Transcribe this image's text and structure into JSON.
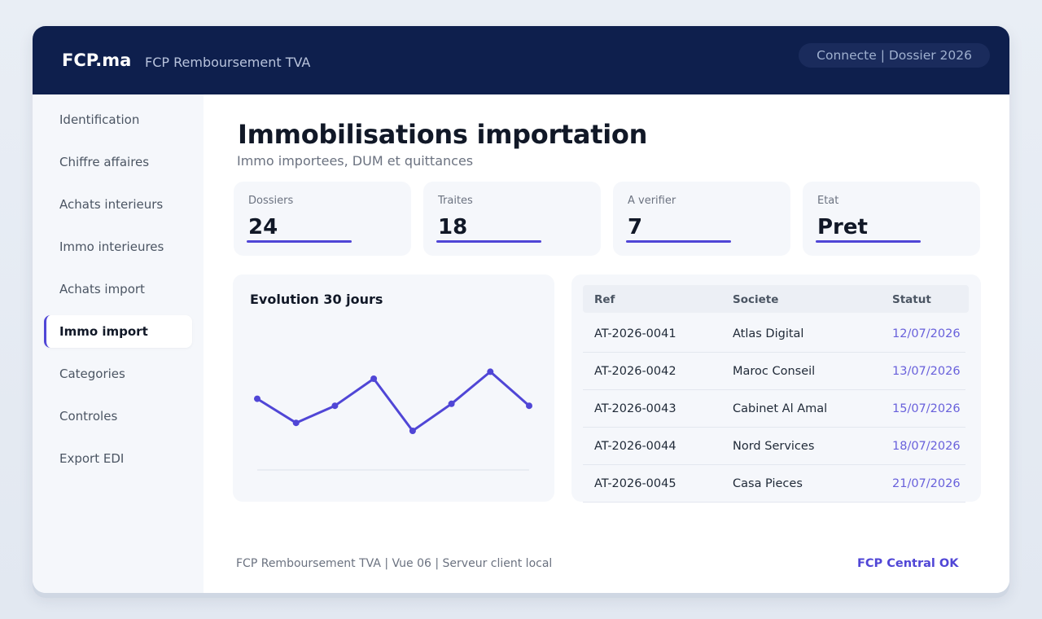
{
  "header": {
    "brand": "FCP.ma",
    "app_name": "FCP Remboursement TVA",
    "status": "Connecte | Dossier 2026"
  },
  "sidebar": {
    "items": [
      {
        "label": "Identification",
        "active": false
      },
      {
        "label": "Chiffre affaires",
        "active": false
      },
      {
        "label": "Achats interieurs",
        "active": false
      },
      {
        "label": "Immo interieures",
        "active": false
      },
      {
        "label": "Achats import",
        "active": false
      },
      {
        "label": "Immo import",
        "active": true
      },
      {
        "label": "Categories",
        "active": false
      },
      {
        "label": "Controles",
        "active": false
      },
      {
        "label": "Export EDI",
        "active": false
      }
    ]
  },
  "page": {
    "title": "Immobilisations importation",
    "subtitle": "Immo importees, DUM et quittances"
  },
  "kpis": [
    {
      "label": "Dossiers",
      "value": "24"
    },
    {
      "label": "Traites",
      "value": "18"
    },
    {
      "label": "A verifier",
      "value": "7"
    },
    {
      "label": "Etat",
      "value": "Pret"
    }
  ],
  "chart": {
    "title": "Evolution 30 jours"
  },
  "chart_data": {
    "type": "line",
    "title": "Evolution 30 jours",
    "x": [
      1,
      2,
      3,
      4,
      5,
      6,
      7,
      8
    ],
    "series": [
      {
        "values": [
          0.71,
          0.47,
          0.64,
          0.91,
          0.39,
          0.66,
          0.98,
          0.64
        ]
      }
    ],
    "ylim": [
      0,
      1.3
    ],
    "grid": false,
    "color": "#5046d6"
  },
  "table": {
    "headers": {
      "ref": "Ref",
      "societe": "Societe",
      "statut": "Statut"
    },
    "rows": [
      {
        "ref": "AT-2026-0041",
        "societe": "Atlas Digital",
        "statut": "12/07/2026"
      },
      {
        "ref": "AT-2026-0042",
        "societe": "Maroc Conseil",
        "statut": "13/07/2026"
      },
      {
        "ref": "AT-2026-0043",
        "societe": "Cabinet Al Amal",
        "statut": "15/07/2026"
      },
      {
        "ref": "AT-2026-0044",
        "societe": "Nord Services",
        "statut": "18/07/2026"
      },
      {
        "ref": "AT-2026-0045",
        "societe": "Casa Pieces",
        "statut": "21/07/2026"
      }
    ]
  },
  "footer": {
    "left": "FCP Remboursement TVA | Vue 06 | Serveur client local",
    "right": "FCP Central OK"
  },
  "colors": {
    "accent": "#5046d6",
    "header_bg": "#0e1f4d"
  }
}
